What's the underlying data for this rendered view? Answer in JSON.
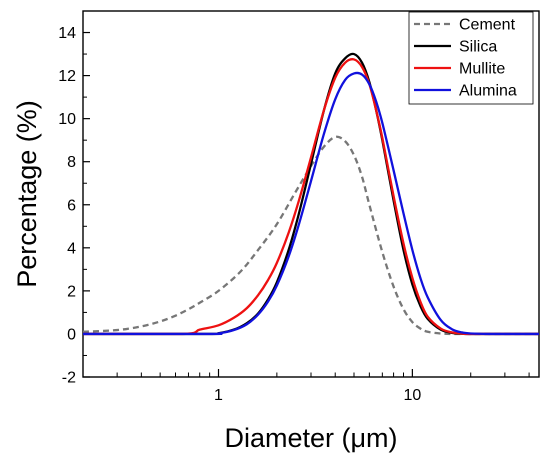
{
  "chart_data": {
    "type": "line",
    "title": "",
    "xlabel": "Diameter (μm)",
    "ylabel": "Percentage (%)",
    "x_scale": "log",
    "xlim": [
      0.2,
      45
    ],
    "ylim": [
      -2,
      15
    ],
    "x_ticks": [
      1,
      10
    ],
    "x_tick_labels": [
      "1",
      "10"
    ],
    "y_ticks": [
      -2,
      0,
      2,
      4,
      6,
      8,
      10,
      12,
      14
    ],
    "y_tick_labels": [
      "-2",
      "0",
      "2",
      "4",
      "6",
      "8",
      "10",
      "12",
      "14"
    ],
    "grid": false,
    "legend_position": "top-right",
    "series": [
      {
        "name": "Cement",
        "color": "#777777",
        "style": "dashed",
        "x": [
          0.2,
          0.3,
          0.4,
          0.5,
          0.6,
          0.7,
          0.8,
          1.0,
          1.3,
          1.6,
          2.0,
          2.5,
          3.0,
          3.5,
          4.0,
          4.5,
          5.0,
          5.5,
          6.0,
          7.0,
          8.0,
          9.0,
          10.0,
          11.0,
          12.0,
          14.0,
          16.0,
          20.0,
          25.0,
          45.0
        ],
        "y": [
          0.1,
          0.18,
          0.35,
          0.58,
          0.85,
          1.15,
          1.45,
          2.0,
          2.9,
          3.9,
          5.1,
          6.6,
          7.8,
          8.7,
          9.15,
          8.95,
          8.3,
          7.3,
          6.0,
          3.8,
          2.2,
          1.15,
          0.55,
          0.25,
          0.1,
          0.02,
          0.0,
          0.0,
          0.0,
          0.0
        ]
      },
      {
        "name": "Silica",
        "color": "#000000",
        "style": "solid",
        "x": [
          0.2,
          0.9,
          1.0,
          1.2,
          1.4,
          1.6,
          1.8,
          2.0,
          2.3,
          2.6,
          3.0,
          3.5,
          4.0,
          4.5,
          5.0,
          5.5,
          6.0,
          6.5,
          7.0,
          8.0,
          9.0,
          10.0,
          11.0,
          12.0,
          14.0,
          16.0,
          18.0,
          20.0,
          25.0,
          45.0
        ],
        "y": [
          0.0,
          0.0,
          0.03,
          0.2,
          0.5,
          0.95,
          1.6,
          2.4,
          3.9,
          5.6,
          7.9,
          10.4,
          12.1,
          12.8,
          13.0,
          12.6,
          11.7,
          10.4,
          9.0,
          6.2,
          3.9,
          2.3,
          1.3,
          0.7,
          0.2,
          0.05,
          0.01,
          0.0,
          0.0,
          0.0
        ]
      },
      {
        "name": "Mullite",
        "color": "#ee1111",
        "style": "solid",
        "x": [
          0.2,
          0.65,
          0.8,
          1.0,
          1.2,
          1.4,
          1.6,
          1.8,
          2.0,
          2.3,
          2.6,
          3.0,
          3.5,
          4.0,
          4.5,
          5.0,
          5.5,
          6.0,
          6.5,
          7.0,
          8.0,
          9.0,
          10.0,
          11.0,
          12.0,
          14.0,
          16.0,
          18.0,
          20.0,
          45.0
        ],
        "y": [
          0.0,
          0.0,
          0.2,
          0.4,
          0.75,
          1.2,
          1.8,
          2.5,
          3.3,
          4.7,
          6.2,
          8.2,
          10.4,
          11.9,
          12.6,
          12.75,
          12.4,
          11.6,
          10.4,
          9.1,
          6.4,
          4.2,
          2.6,
          1.5,
          0.8,
          0.25,
          0.07,
          0.02,
          0.0,
          0.0
        ]
      },
      {
        "name": "Alumina",
        "color": "#1111dd",
        "style": "solid",
        "x": [
          0.2,
          0.9,
          1.0,
          1.2,
          1.4,
          1.6,
          1.8,
          2.0,
          2.3,
          2.6,
          3.0,
          3.5,
          4.0,
          4.5,
          5.0,
          5.5,
          6.0,
          6.5,
          7.0,
          8.0,
          9.0,
          10.0,
          11.0,
          12.0,
          14.0,
          16.0,
          18.0,
          20.0,
          25.0,
          45.0
        ],
        "y": [
          0.0,
          0.0,
          0.02,
          0.18,
          0.45,
          0.9,
          1.5,
          2.25,
          3.6,
          5.1,
          7.1,
          9.3,
          10.9,
          11.8,
          12.1,
          12.05,
          11.6,
          10.8,
          9.8,
          7.6,
          5.6,
          3.9,
          2.6,
          1.7,
          0.65,
          0.22,
          0.07,
          0.02,
          0.0,
          0.0
        ]
      }
    ]
  }
}
